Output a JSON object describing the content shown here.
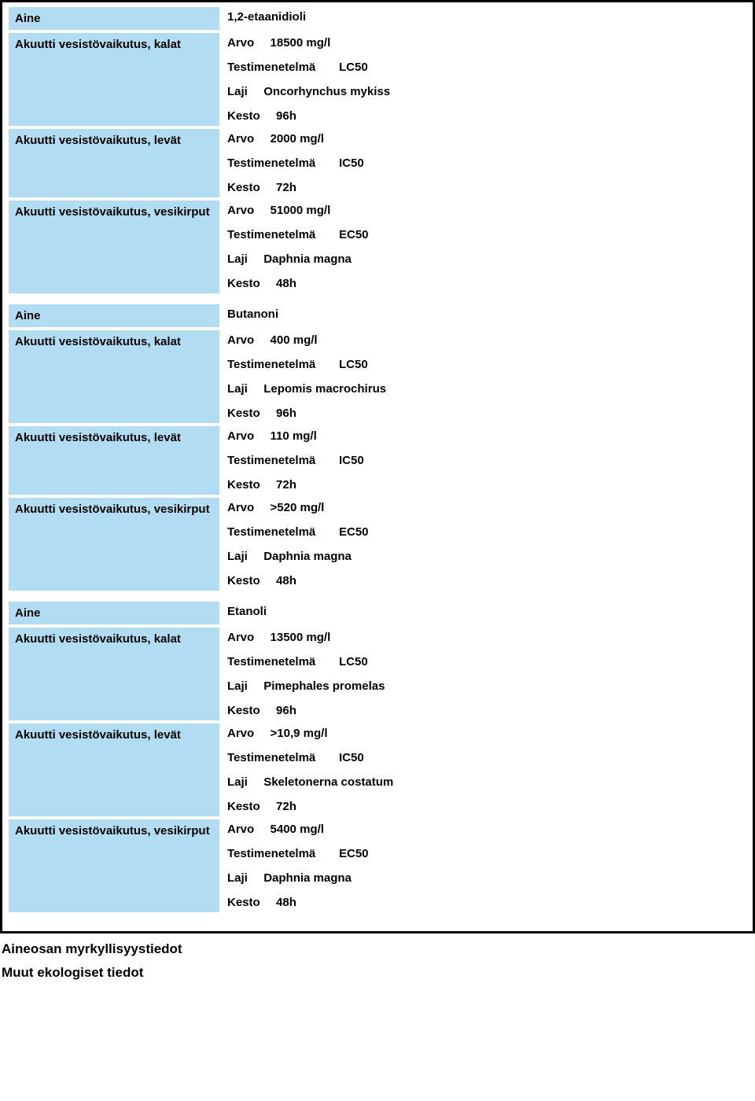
{
  "colors": {
    "label_bg": "#b2dcf2",
    "border": "#000000",
    "text": "#000000",
    "page_bg": "#ffffff"
  },
  "labels": {
    "aine": "Aine",
    "kalat": "Akuutti vesistövaikutus, kalat",
    "levat": "Akuutti vesistövaikutus, levät",
    "vesikirput": "Akuutti vesistövaikutus, vesikirput",
    "arvo": "Arvo",
    "testi": "Testimenetelmä",
    "laji": "Laji",
    "kesto": "Kesto"
  },
  "substances": [
    {
      "name": "1,2-etaanidioli",
      "effects": [
        {
          "key": "kalat",
          "arvo": "18500 mg/l",
          "testi": "LC50",
          "laji": "Oncorhynchus mykiss",
          "kesto": "96h"
        },
        {
          "key": "levat",
          "arvo": "2000 mg/l",
          "testi": "IC50",
          "laji": null,
          "kesto": "72h"
        },
        {
          "key": "vesikirput",
          "arvo": "51000 mg/l",
          "testi": "EC50",
          "laji": "Daphnia magna",
          "kesto": "48h"
        }
      ]
    },
    {
      "name": "Butanoni",
      "effects": [
        {
          "key": "kalat",
          "arvo": "400 mg/l",
          "testi": "LC50",
          "laji": "Lepomis macrochirus",
          "kesto": "96h"
        },
        {
          "key": "levat",
          "arvo": "110 mg/l",
          "testi": "IC50",
          "laji": null,
          "kesto": "72h"
        },
        {
          "key": "vesikirput",
          "arvo": ">520 mg/l",
          "testi": "EC50",
          "laji": "Daphnia magna",
          "kesto": "48h"
        }
      ]
    },
    {
      "name": "Etanoli",
      "effects": [
        {
          "key": "kalat",
          "arvo": "13500 mg/l",
          "testi": "LC50",
          "laji": "Pimephales promelas",
          "kesto": "96h"
        },
        {
          "key": "levat",
          "arvo": ">10,9 mg/l",
          "testi": "IC50",
          "laji": "Skeletonerna costatum",
          "kesto": "72h"
        },
        {
          "key": "vesikirput",
          "arvo": "5400 mg/l",
          "testi": "EC50",
          "laji": "Daphnia magna",
          "kesto": "48h"
        }
      ]
    }
  ],
  "footer": {
    "line1": "Aineosan myrkyllisyystiedot",
    "line2": "Muut ekologiset tiedot"
  }
}
